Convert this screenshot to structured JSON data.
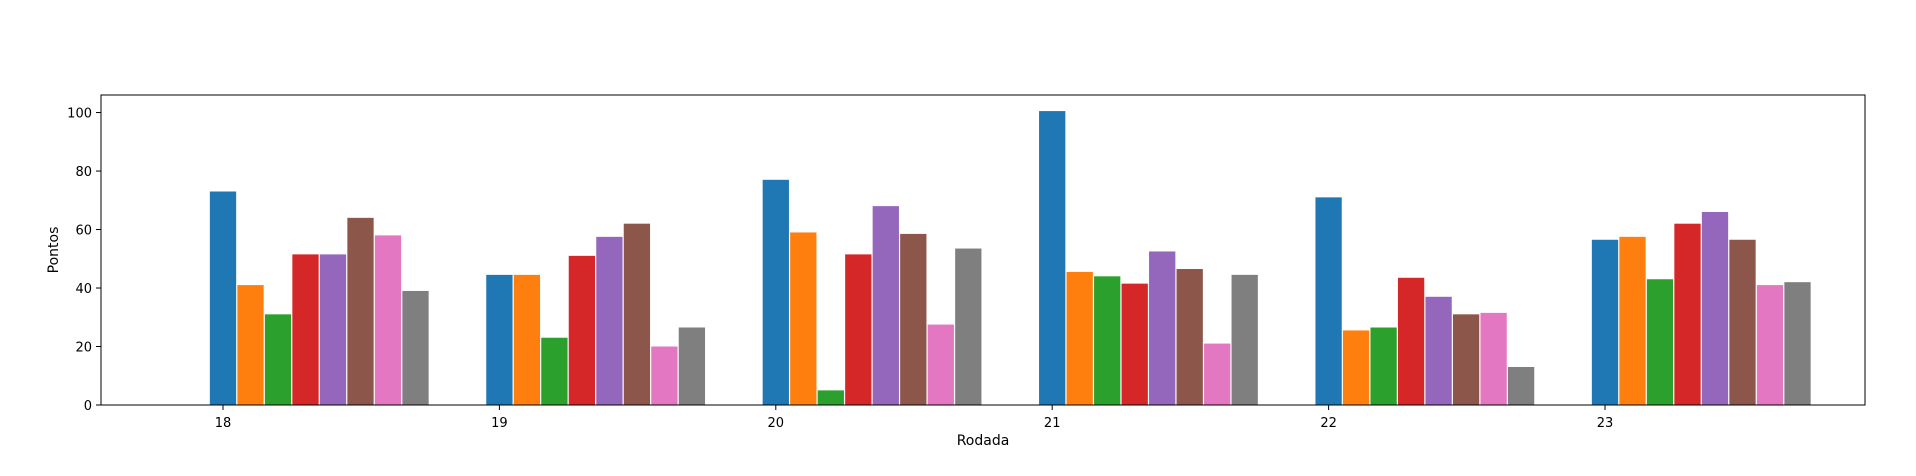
{
  "chart_data": {
    "type": "bar",
    "title": "",
    "xlabel": "Rodada",
    "ylabel": "Pontos",
    "categories": [
      "18",
      "19",
      "20",
      "21",
      "22",
      "23"
    ],
    "ylim": [
      0,
      106
    ],
    "yticks": [
      0,
      20,
      40,
      60,
      80,
      100
    ],
    "grid": false,
    "legend": "none",
    "series": [
      {
        "color": "#1f77b4",
        "values": [
          73,
          44.5,
          77,
          100.5,
          71,
          56.5
        ]
      },
      {
        "color": "#ff7f0e",
        "values": [
          41,
          44.5,
          59,
          45.5,
          25.5,
          57.5
        ]
      },
      {
        "color": "#2ca02c",
        "values": [
          31,
          23,
          5,
          44,
          26.5,
          43
        ]
      },
      {
        "color": "#d62728",
        "values": [
          51.5,
          51,
          51.5,
          41.5,
          43.5,
          62
        ]
      },
      {
        "color": "#9467bd",
        "values": [
          51.5,
          57.5,
          68,
          52.5,
          37,
          66
        ]
      },
      {
        "color": "#8c564b",
        "values": [
          64,
          62,
          58.5,
          46.5,
          31,
          56.5
        ]
      },
      {
        "color": "#e377c2",
        "values": [
          58,
          20,
          27.5,
          21,
          31.5,
          41
        ]
      },
      {
        "color": "#7f7f7f",
        "values": [
          39,
          26.5,
          53.5,
          44.5,
          13,
          42
        ]
      }
    ]
  }
}
